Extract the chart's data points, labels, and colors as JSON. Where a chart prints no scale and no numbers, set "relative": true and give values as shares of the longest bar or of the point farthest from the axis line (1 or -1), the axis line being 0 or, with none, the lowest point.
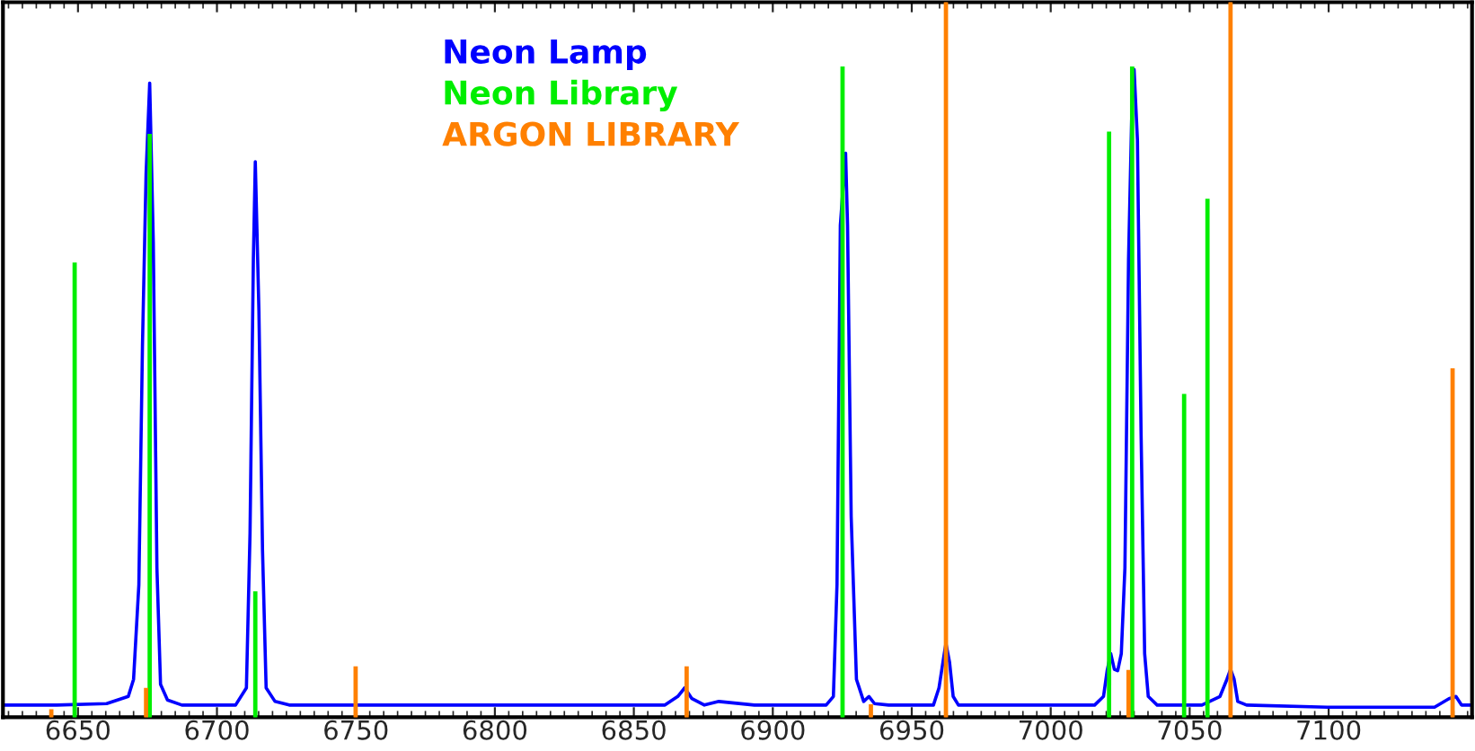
{
  "chart_data": {
    "type": "line",
    "relative": true,
    "legend": "top",
    "grid": false,
    "marker": "none",
    "line_style": "solid",
    "xlim": [
      6623,
      7151.6
    ],
    "xticks": [
      6650,
      6700,
      6750,
      6800,
      6850,
      6900,
      6950,
      7000,
      7050,
      7100
    ],
    "series": [
      {
        "name": "Neon Lamp",
        "color": "#0000ff",
        "x": [
          6623.0,
          6642.3,
          6660.3,
          6668.1,
          6670.0,
          6671.9,
          6673.2,
          6674.5,
          6675.8,
          6677.1,
          6678.4,
          6679.7,
          6682.2,
          6687.4,
          6706.7,
          6710.6,
          6711.9,
          6713.1,
          6713.8,
          6715.1,
          6716.4,
          6717.7,
          6720.9,
          6726.0,
          6861.2,
          6865.8,
          6868.3,
          6870.9,
          6875.4,
          6880.6,
          6893.4,
          6919.2,
          6921.8,
          6923.1,
          6924.3,
          6926.2,
          6926.9,
          6928.2,
          6930.1,
          6932.7,
          6934.6,
          6936.6,
          6941.7,
          6957.8,
          6959.8,
          6961.7,
          6962.3,
          6963.6,
          6964.9,
          6966.8,
          7015.8,
          7019.0,
          7020.3,
          7021.6,
          7022.9,
          7024.1,
          7025.4,
          7026.7,
          7028.0,
          7029.3,
          7030.0,
          7031.2,
          7032.5,
          7033.8,
          7035.1,
          7038.3,
          7054.4,
          7060.9,
          7063.4,
          7064.7,
          7066.0,
          7067.3,
          7070.5,
          7099.5,
          7138.1,
          7143.3,
          7145.8,
          7147.8,
          7151.0
        ],
        "values": [
          0.017,
          0.017,
          0.019,
          0.029,
          0.053,
          0.185,
          0.52,
          0.76,
          0.887,
          0.664,
          0.209,
          0.046,
          0.024,
          0.017,
          0.017,
          0.041,
          0.257,
          0.64,
          0.777,
          0.568,
          0.233,
          0.041,
          0.022,
          0.017,
          0.017,
          0.029,
          0.041,
          0.026,
          0.017,
          0.022,
          0.017,
          0.017,
          0.029,
          0.185,
          0.688,
          0.789,
          0.688,
          0.281,
          0.053,
          0.022,
          0.029,
          0.019,
          0.017,
          0.017,
          0.041,
          0.089,
          0.103,
          0.077,
          0.029,
          0.017,
          0.017,
          0.029,
          0.065,
          0.089,
          0.067,
          0.065,
          0.089,
          0.209,
          0.64,
          0.868,
          0.906,
          0.808,
          0.4,
          0.089,
          0.029,
          0.017,
          0.017,
          0.029,
          0.053,
          0.067,
          0.053,
          0.022,
          0.017,
          0.014,
          0.014,
          0.026,
          0.029,
          0.017,
          0.017
        ]
      },
      {
        "name": "Neon Library",
        "type": "bar",
        "color": "#00ee00",
        "x": [
          6648.8,
          6675.8,
          6713.8,
          6925.1,
          7021.0,
          7029.3,
          7048.0,
          7056.4
        ],
        "values": [
          0.635,
          0.815,
          0.175,
          0.909,
          0.818,
          0.909,
          0.451,
          0.724
        ]
      },
      {
        "name": "ARGON LIBRARY",
        "type": "bar",
        "color": "#ff8000",
        "x": [
          6640.4,
          6674.5,
          6749.9,
          6869.0,
          6935.3,
          6962.3,
          7028.0,
          7064.7,
          7144.6
        ],
        "values": [
          0.01,
          0.04,
          0.07,
          0.07,
          0.017,
          1,
          0.065,
          1,
          0.487
        ]
      }
    ]
  }
}
